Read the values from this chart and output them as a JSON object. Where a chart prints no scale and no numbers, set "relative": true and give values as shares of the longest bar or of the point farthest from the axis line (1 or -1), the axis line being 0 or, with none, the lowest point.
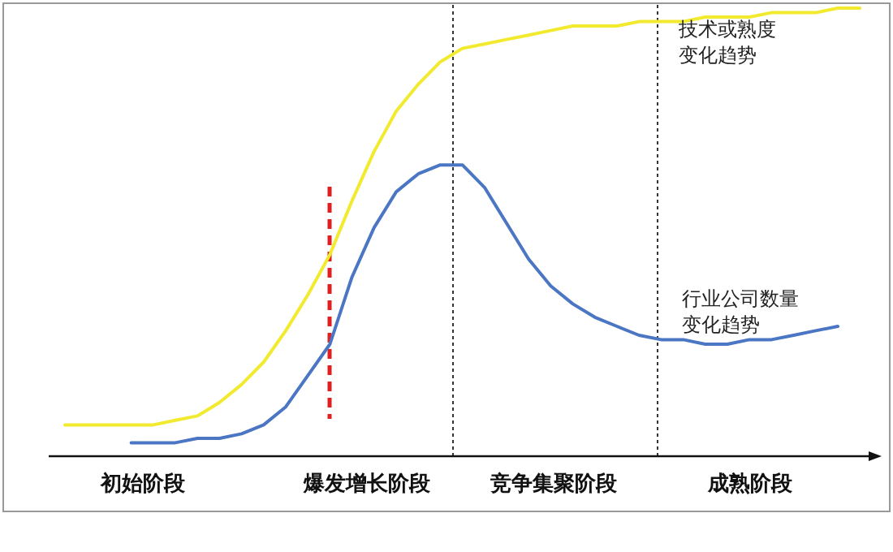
{
  "chart_data": {
    "type": "line",
    "relative": true,
    "categories": [
      null,
      null,
      null,
      null,
      null,
      null,
      null,
      null,
      null,
      null,
      null,
      null,
      null,
      null,
      null,
      null,
      null,
      null,
      null,
      null,
      null,
      null,
      null,
      null,
      null,
      null,
      null,
      null,
      null,
      null,
      null,
      null,
      null,
      null,
      null,
      null,
      null
    ],
    "series": [
      {
        "name": "技术或熟度变化趋势",
        "color": "#f2ea2e",
        "values": [
          0.07,
          0.07,
          0.07,
          0.07,
          0.07,
          0.08,
          0.09,
          0.12,
          0.16,
          0.21,
          0.28,
          0.36,
          0.45,
          0.57,
          0.68,
          0.77,
          0.83,
          0.88,
          0.91,
          0.92,
          0.93,
          0.94,
          0.95,
          0.96,
          0.96,
          0.96,
          0.97,
          0.97,
          0.97,
          0.98,
          0.98,
          0.98,
          0.99,
          0.99,
          0.99,
          1.0,
          1.0
        ]
      },
      {
        "name": "行业公司数量变化趋势",
        "color": "#4a76c4",
        "values": [
          null,
          null,
          null,
          0.03,
          0.03,
          0.03,
          0.04,
          0.04,
          0.05,
          0.07,
          0.11,
          0.18,
          0.25,
          0.4,
          0.51,
          0.59,
          0.63,
          0.65,
          0.65,
          0.6,
          0.52,
          0.44,
          0.38,
          0.34,
          0.31,
          0.29,
          0.27,
          0.26,
          0.26,
          0.25,
          0.25,
          0.26,
          0.26,
          0.27,
          0.28,
          0.29,
          null
        ]
      }
    ],
    "annotations": [
      "初始阶段",
      "爆发增长阶段",
      "竞争集聚阶段",
      "成熟阶段"
    ]
  }
}
